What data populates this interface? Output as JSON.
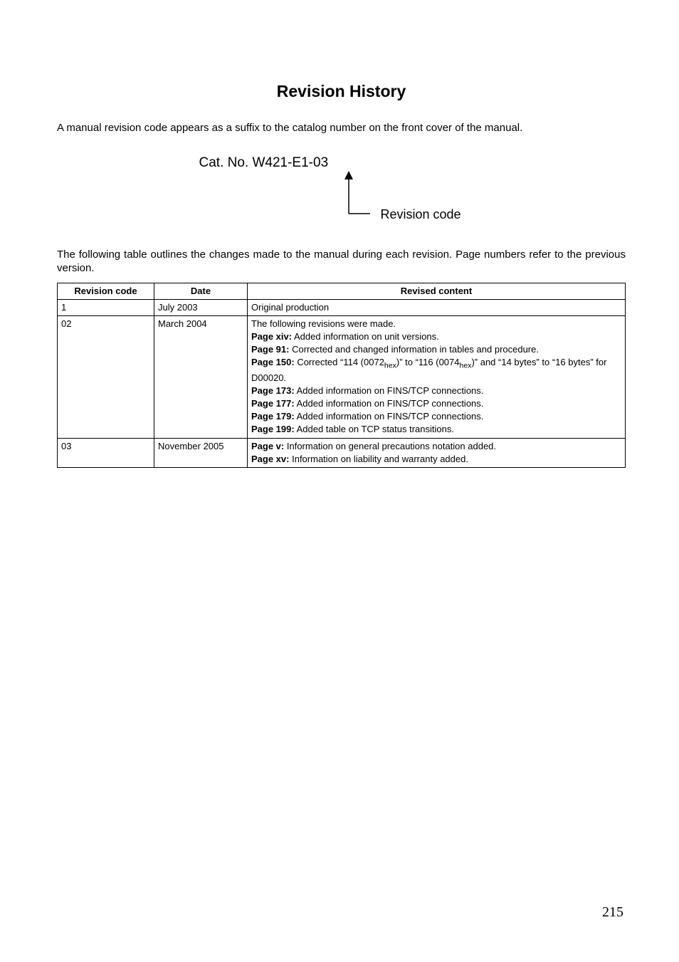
{
  "title": "Revision History",
  "intro": "A manual revision code appears as a suffix to the catalog number on the front cover of the manual.",
  "catNo": "Cat. No. W421-E1-03",
  "revCodeLabel": "Revision code",
  "tableIntro": "The following table outlines the changes made to the manual during each revision. Page numbers refer to the previous version.",
  "headers": {
    "code": "Revision code",
    "date": "Date",
    "content": "Revised content"
  },
  "rows": [
    {
      "code": "1",
      "date": "July 2003",
      "content": [
        {
          "plain": "Original production"
        }
      ]
    },
    {
      "code": "02",
      "date": "March 2004",
      "content": [
        {
          "plain": "The following revisions were made."
        },
        {
          "boldPrefix": "Page xiv:",
          "rest": " Added information on unit versions."
        },
        {
          "boldPrefix": "Page 91:",
          "rest": " Corrected and changed information in tables and procedure."
        },
        {
          "boldPrefix": "Page 150:",
          "restHtml": " Corrected “114 (0072<sub>hex</sub>)” to “116 (0074<sub>hex</sub>)” and “14 bytes” to “16 bytes” for D00020."
        },
        {
          "boldPrefix": "Page 173:",
          "rest": " Added information on FINS/TCP connections."
        },
        {
          "boldPrefix": "Page 177:",
          "rest": " Added information on FINS/TCP connections."
        },
        {
          "boldPrefix": "Page 179:",
          "rest": " Added information on FINS/TCP connections."
        },
        {
          "boldPrefix": "Page 199:",
          "rest": " Added table on TCP status transitions."
        }
      ]
    },
    {
      "code": "03",
      "date": "November 2005",
      "content": [
        {
          "boldPrefix": "Page v:",
          "rest": " Information on general precautions notation added."
        },
        {
          "boldPrefix": "Page xv:",
          "rest": " Information on liability and warranty added."
        }
      ]
    }
  ],
  "pageNumber": "215",
  "style": {
    "pageWidth": 954,
    "pageHeight": 1351,
    "background": "#ffffff",
    "textColor": "#000000",
    "titleFontSize": 23,
    "bodyFontSize": 15,
    "catFontSize": 19,
    "labelFontSize": 18,
    "tableFontSize": 13,
    "tableBorderColor": "#000000",
    "pageNumFontSize": 20
  }
}
